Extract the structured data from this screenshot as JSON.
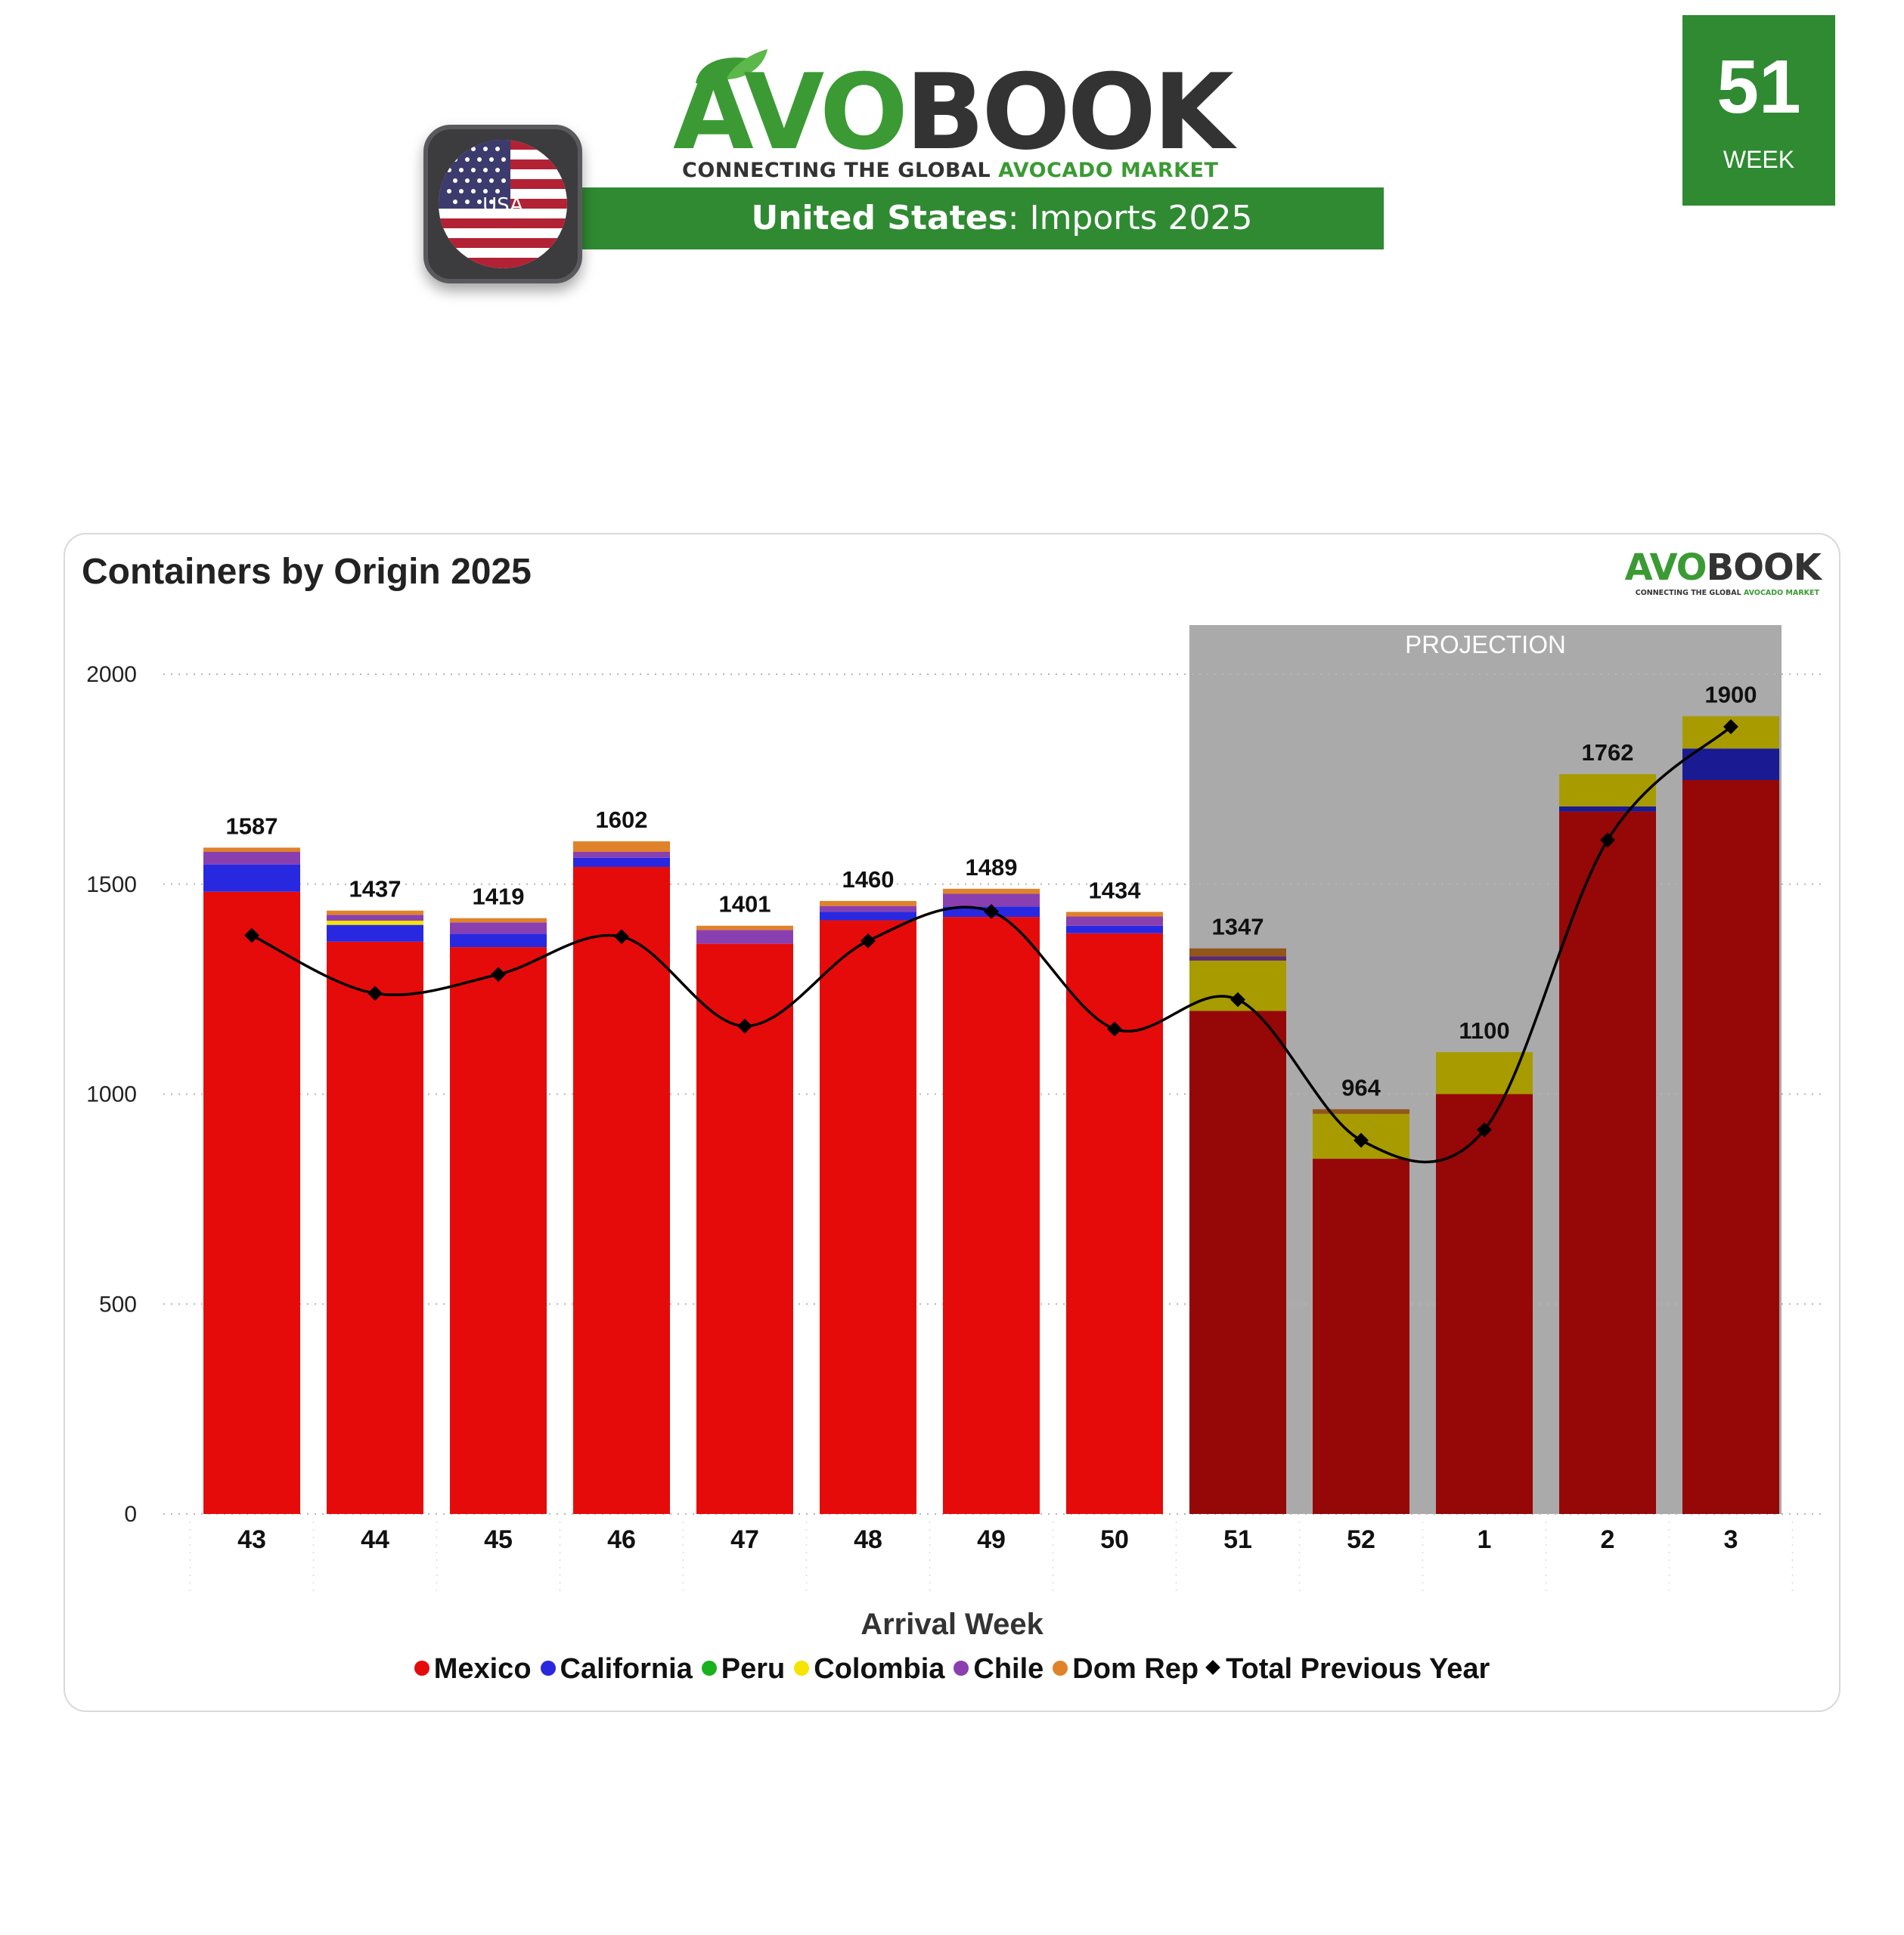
{
  "brand": {
    "name_part1": "AVO",
    "name_part2": "BOOK",
    "tagline_part1": "CONNECTING THE GLOBAL ",
    "tagline_part2": "AVOCADO MARKET"
  },
  "banner": {
    "country": "United States",
    "rest": ": Imports 2025"
  },
  "flag": {
    "label": "USA"
  },
  "week": {
    "number": "51",
    "label": "WEEK"
  },
  "colors": {
    "brand_green": "#2f8a32",
    "mexico": "#e60b0b",
    "california": "#2828e0",
    "peru": "#19b21f",
    "colombia": "#f5e400",
    "chile": "#8a3fb0",
    "domrep": "#e0822a",
    "previous_year": "#000000",
    "projection_bg": "#aaaaaa"
  },
  "chart_data": {
    "type": "bar",
    "title": "Containers by Origin 2025",
    "xlabel": "Arrival Week",
    "ylabel": "",
    "ylim": [
      0,
      2000
    ],
    "yticks": [
      0,
      500,
      1000,
      1500,
      2000
    ],
    "stacked": true,
    "categories": [
      "43",
      "44",
      "45",
      "46",
      "47",
      "48",
      "49",
      "50",
      "51",
      "52",
      "1",
      "2",
      "3"
    ],
    "projection": {
      "label": "PROJECTION",
      "from_category": "51",
      "to_category": "3"
    },
    "series": [
      {
        "name": "Mexico",
        "values": [
          1482,
          1363,
          1350,
          1541,
          1358,
          1414,
          1422,
          1383,
          1198,
          846,
          1000,
          1673,
          1748
        ]
      },
      {
        "name": "California",
        "values": [
          65,
          40,
          32,
          22,
          0,
          20,
          25,
          18,
          0,
          0,
          0,
          12,
          75
        ]
      },
      {
        "name": "Peru",
        "values": [
          0,
          0,
          0,
          0,
          0,
          0,
          0,
          0,
          0,
          0,
          0,
          0,
          0
        ]
      },
      {
        "name": "Colombia",
        "values": [
          0,
          10,
          0,
          0,
          0,
          0,
          0,
          0,
          120,
          107,
          100,
          77,
          77
        ]
      },
      {
        "name": "Chile",
        "values": [
          30,
          14,
          27,
          14,
          33,
          14,
          30,
          22,
          10,
          0,
          0,
          0,
          0
        ]
      },
      {
        "name": "Dom Rep",
        "values": [
          10,
          10,
          10,
          25,
          10,
          12,
          12,
          11,
          19,
          11,
          0,
          0,
          0
        ]
      }
    ],
    "totals": [
      1587,
      1437,
      1419,
      1602,
      1401,
      1460,
      1489,
      1434,
      1347,
      964,
      1100,
      1762,
      1900
    ],
    "line_series": {
      "name": "Total Previous Year",
      "values": [
        1378,
        1240,
        1285,
        1375,
        1162,
        1365,
        1435,
        1155,
        1225,
        890,
        915,
        1605,
        1875
      ]
    },
    "legend": [
      "Mexico",
      "California",
      "Peru",
      "Colombia",
      "Chile",
      "Dom Rep",
      "Total Previous Year"
    ],
    "legend_position": "bottom"
  }
}
